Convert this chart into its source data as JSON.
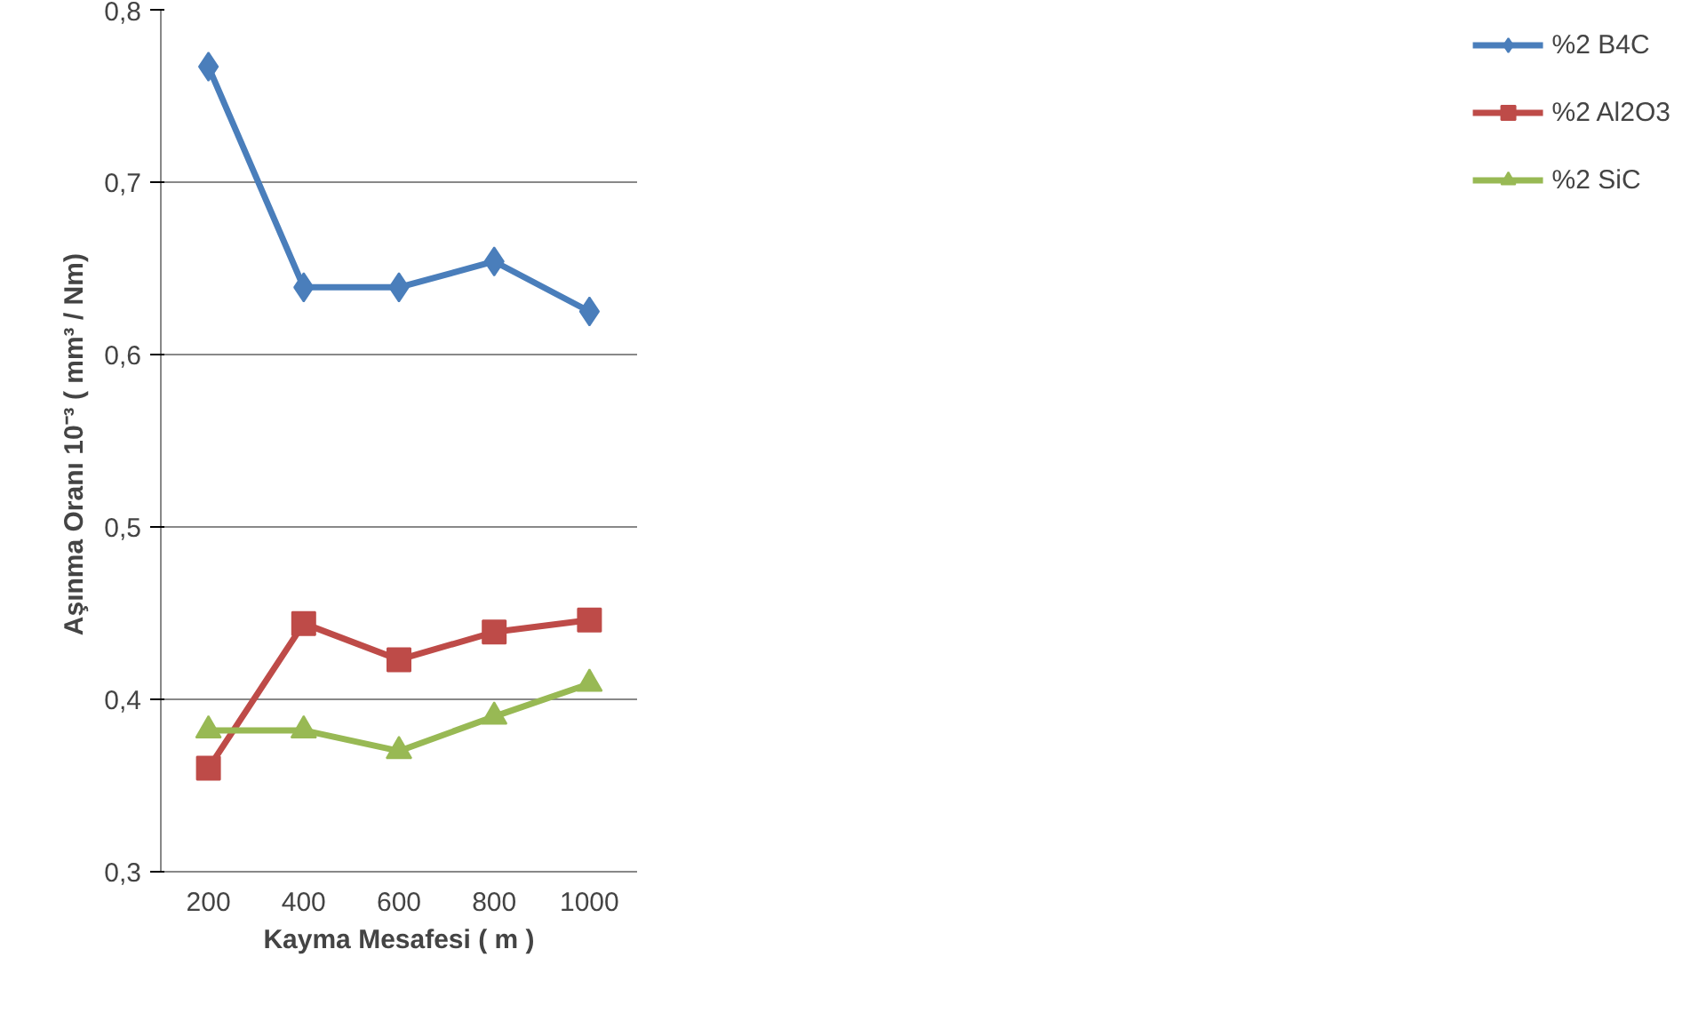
{
  "chart_data": {
    "type": "line",
    "xlabel": "Kayma Mesafesi ( m )",
    "ylabel": "Aşınma Oranı  10⁻³ ( mm³ / Nm)",
    "categories": [
      "200",
      "400",
      "600",
      "800",
      "1000"
    ],
    "series": [
      {
        "name": "%2 B4C",
        "color": "#4a7ebb",
        "marker": "diamond",
        "values": [
          0.767,
          0.639,
          0.639,
          0.654,
          0.625
        ]
      },
      {
        "name": "%2 Al2O3",
        "color": "#be4b48",
        "marker": "square",
        "values": [
          0.36,
          0.444,
          0.423,
          0.439,
          0.446
        ]
      },
      {
        "name": "%2 SiC",
        "color": "#98b954",
        "marker": "triangle",
        "values": [
          0.382,
          0.382,
          0.37,
          0.39,
          0.409
        ]
      }
    ],
    "ylim": [
      0.3,
      0.8
    ],
    "yticks": [
      {
        "value": 0.3,
        "label": "0,3"
      },
      {
        "value": 0.4,
        "label": "0,4"
      },
      {
        "value": 0.5,
        "label": "0,5"
      },
      {
        "value": 0.6,
        "label": "0,6"
      },
      {
        "value": 0.7,
        "label": "0,7"
      },
      {
        "value": 0.8,
        "label": "0,8"
      }
    ],
    "grid": "y",
    "legend": "right",
    "line_style": "solid"
  }
}
